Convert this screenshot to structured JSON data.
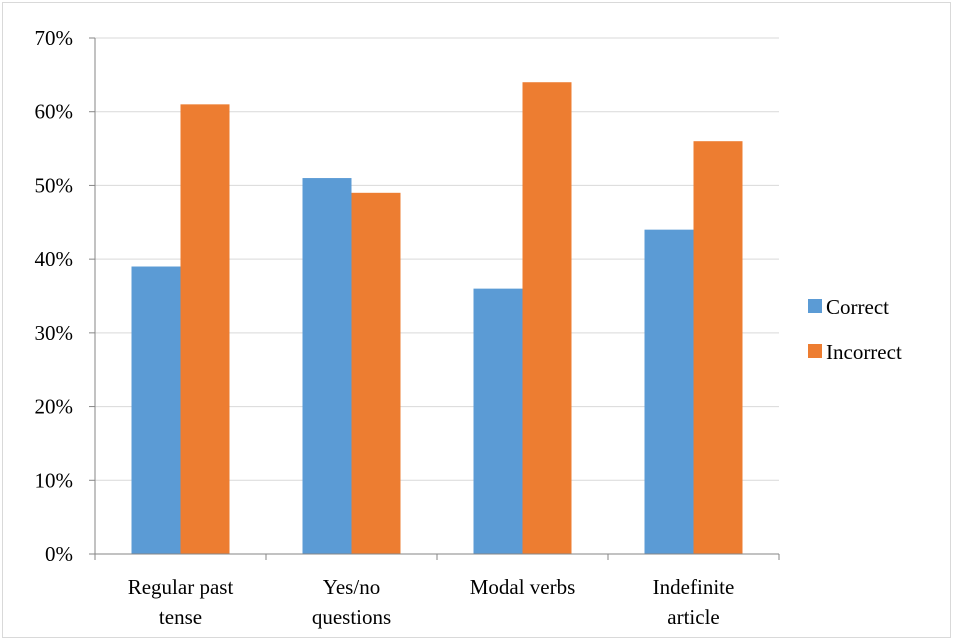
{
  "chart_data": {
    "type": "bar",
    "categories": [
      [
        "Regular past",
        "tense"
      ],
      [
        "Yes/no",
        "questions"
      ],
      [
        "Modal verbs"
      ],
      [
        "Indefinite",
        "article"
      ]
    ],
    "series": [
      {
        "name": "Correct",
        "values": [
          39,
          51,
          36,
          44
        ],
        "color": "#5b9bd5"
      },
      {
        "name": "Incorrect",
        "values": [
          61,
          49,
          64,
          56
        ],
        "color": "#ed7d31"
      }
    ],
    "ylim": [
      0,
      70
    ],
    "yticks": [
      0,
      10,
      20,
      30,
      40,
      50,
      60,
      70
    ],
    "ytick_format": "percent",
    "grid": true,
    "grid_color": "#d9d9d9",
    "legend_position": "right"
  }
}
